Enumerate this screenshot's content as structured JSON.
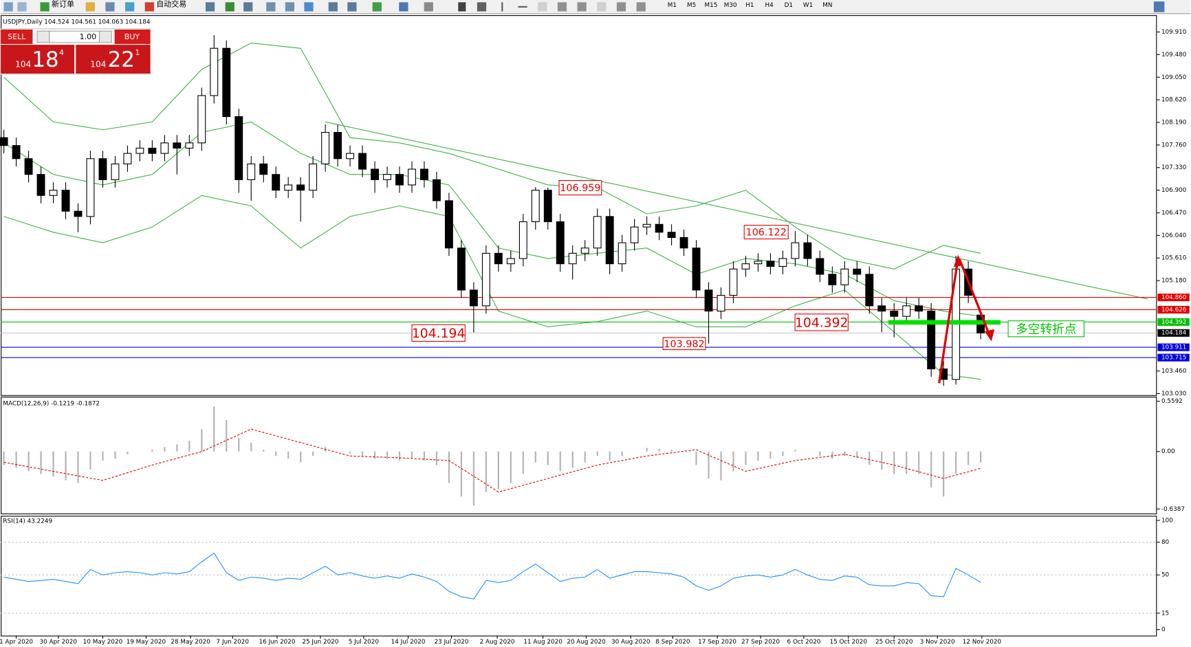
{
  "toolbar": {
    "new_order": "新订单",
    "auto_trade": "自动交易",
    "timeframes": [
      "M1",
      "M5",
      "M15",
      "M30",
      "H1",
      "H4",
      "D1",
      "W1",
      "MN"
    ]
  },
  "trade_panel": {
    "sell_label": "SELL",
    "buy_label": "BUY",
    "lot": "1.00",
    "sell": {
      "small": "104",
      "big": "18",
      "sup": "4"
    },
    "buy": {
      "small": "104",
      "big": "22",
      "sup": "1"
    }
  },
  "chart_data": [
    {
      "type": "candlestick",
      "title": "USDJPY,Daily 104.524 104.561 104.063 104.184",
      "open": [
        107.9,
        107.75,
        107.5,
        107.2,
        106.8,
        106.9,
        106.5,
        106.4,
        107.5,
        107.1,
        107.4,
        107.6,
        107.7,
        107.6,
        107.8,
        107.7,
        107.8,
        108.7,
        109.6,
        108.3,
        107.1,
        107.4,
        107.2,
        106.9,
        107.0,
        106.9,
        107.4,
        108.0,
        107.5,
        107.6,
        107.3,
        107.1,
        107.2,
        107.0,
        107.3,
        107.1,
        106.7,
        105.8,
        105.0,
        104.7,
        105.7,
        105.5,
        105.6,
        106.3,
        106.9,
        106.3,
        105.5,
        105.7,
        105.8,
        106.4,
        105.5,
        105.9,
        106.2,
        106.25,
        106.1,
        106.0,
        105.8,
        105.0,
        104.6,
        104.9,
        105.4,
        105.5,
        105.55,
        105.45,
        105.6,
        105.9,
        105.6,
        105.3,
        105.1,
        105.4,
        105.3,
        104.7,
        104.6,
        104.5,
        104.7,
        104.6,
        103.5,
        103.3,
        105.4,
        104.524
      ],
      "high": [
        108.05,
        107.9,
        107.65,
        107.35,
        107.05,
        107.05,
        106.65,
        107.65,
        107.65,
        107.55,
        107.75,
        107.85,
        107.85,
        107.95,
        107.95,
        107.95,
        108.85,
        109.85,
        109.75,
        108.45,
        107.55,
        107.55,
        107.35,
        107.15,
        107.15,
        107.55,
        108.15,
        108.15,
        107.75,
        107.75,
        107.45,
        107.35,
        107.35,
        107.45,
        107.45,
        107.25,
        106.85,
        105.95,
        105.15,
        105.85,
        105.85,
        105.75,
        106.45,
        106.959,
        106.95,
        106.45,
        105.85,
        105.95,
        106.55,
        106.55,
        106.05,
        106.35,
        106.4,
        106.4,
        106.25,
        106.15,
        105.95,
        105.15,
        105.05,
        105.55,
        105.65,
        105.7,
        105.7,
        105.75,
        106.122,
        106.05,
        105.75,
        105.45,
        105.55,
        105.55,
        105.45,
        104.85,
        104.75,
        104.85,
        104.85,
        104.75,
        103.65,
        105.65,
        105.55,
        104.561
      ],
      "low": [
        107.6,
        107.35,
        107.05,
        106.65,
        106.65,
        106.35,
        106.1,
        106.25,
        106.95,
        106.95,
        107.25,
        107.45,
        107.45,
        107.45,
        107.2,
        107.55,
        107.65,
        108.55,
        108.15,
        106.85,
        106.7,
        107.05,
        106.75,
        106.75,
        106.3,
        106.75,
        107.25,
        107.35,
        107.35,
        107.15,
        106.85,
        106.95,
        106.85,
        106.85,
        106.95,
        106.55,
        105.65,
        104.85,
        104.194,
        104.55,
        105.35,
        105.35,
        105.45,
        106.15,
        106.15,
        105.35,
        105.2,
        105.55,
        105.65,
        105.3,
        105.35,
        105.75,
        106.05,
        105.95,
        105.85,
        105.65,
        104.85,
        103.982,
        104.45,
        104.75,
        105.25,
        105.35,
        105.3,
        105.3,
        105.45,
        105.45,
        105.15,
        104.95,
        104.95,
        105.15,
        104.55,
        104.2,
        104.1,
        104.35,
        104.45,
        103.35,
        103.18,
        103.2,
        104.75,
        104.063
      ],
      "close": [
        107.75,
        107.5,
        107.2,
        106.8,
        106.9,
        106.5,
        106.4,
        107.5,
        107.1,
        107.4,
        107.6,
        107.7,
        107.6,
        107.8,
        107.7,
        107.8,
        108.7,
        109.6,
        108.3,
        107.1,
        107.4,
        107.2,
        106.9,
        107.0,
        106.9,
        107.4,
        108.0,
        107.5,
        107.6,
        107.3,
        107.1,
        107.2,
        107.0,
        107.3,
        107.1,
        106.7,
        105.8,
        105.0,
        104.7,
        105.7,
        105.5,
        105.6,
        106.3,
        106.9,
        106.3,
        105.5,
        105.7,
        105.8,
        106.4,
        105.5,
        105.9,
        106.2,
        106.25,
        106.1,
        106.0,
        105.8,
        105.0,
        104.6,
        104.9,
        105.4,
        105.5,
        105.55,
        105.45,
        105.6,
        105.9,
        105.6,
        105.3,
        105.1,
        105.4,
        105.3,
        104.7,
        104.6,
        104.5,
        104.7,
        104.6,
        103.5,
        103.3,
        105.4,
        104.9,
        104.184
      ],
      "xlim": [
        -0.25,
        93.25
      ],
      "ylim": [
        103.0,
        110.23
      ],
      "yticks": [
        {
          "value": 109.91,
          "label": "109.910"
        },
        {
          "value": 109.48,
          "label": "109.480"
        },
        {
          "value": 109.05,
          "label": "109.050"
        },
        {
          "value": 108.62,
          "label": "108.620"
        },
        {
          "value": 108.19,
          "label": "108.190"
        },
        {
          "value": 107.76,
          "label": "107.760"
        },
        {
          "value": 107.33,
          "label": "107.330"
        },
        {
          "value": 106.9,
          "label": "106.900"
        },
        {
          "value": 106.47,
          "label": "106.470"
        },
        {
          "value": 106.04,
          "label": "106.040"
        },
        {
          "value": 105.61,
          "label": "105.610"
        },
        {
          "value": 105.18,
          "label": "105.180"
        },
        {
          "value": 103.46,
          "label": "103.460"
        },
        {
          "value": 103.03,
          "label": "103.030"
        }
      ],
      "xticks": [
        {
          "value": 1.0,
          "label": "1 Apr 2020"
        },
        {
          "value": 4.4,
          "label": "30 Apr 2020"
        },
        {
          "value": 8.0,
          "label": "10 May 2020"
        },
        {
          "value": 11.5,
          "label": "19 May 2020"
        },
        {
          "value": 15.1,
          "label": "28 May 2020"
        },
        {
          "value": 18.5,
          "label": "7 Jun 2020"
        },
        {
          "value": 22.1,
          "label": "16 Jun 2020"
        },
        {
          "value": 25.6,
          "label": "25 Jun 2020"
        },
        {
          "value": 29.1,
          "label": "5 Jul 2020"
        },
        {
          "value": 32.7,
          "label": "14 Jul 2020"
        },
        {
          "value": 36.2,
          "label": "23 Jul 2020"
        },
        {
          "value": 39.9,
          "label": "2 Aug 2020"
        },
        {
          "value": 43.6,
          "label": "11 Aug 2020"
        },
        {
          "value": 47.1,
          "label": "20 Aug 2020"
        },
        {
          "value": 50.7,
          "label": "30 Aug 2020"
        },
        {
          "value": 54.1,
          "label": "8 Sep 2020"
        },
        {
          "value": 57.7,
          "label": "17 Sep 2020"
        },
        {
          "value": 61.2,
          "label": "27 Sep 2020"
        },
        {
          "value": 64.7,
          "label": "6 Oct 2020"
        },
        {
          "value": 68.3,
          "label": "15 Oct 2020"
        },
        {
          "value": 72.0,
          "label": "25 Oct 2020"
        },
        {
          "value": 75.5,
          "label": "3 Nov 2020"
        },
        {
          "value": 79.1,
          "label": "12 Nov 2020"
        }
      ],
      "bands": {
        "color": "#3cb043",
        "x": [
          0,
          4,
          8,
          12,
          16,
          20,
          24,
          28,
          32,
          36,
          40,
          44,
          48,
          52,
          56,
          60,
          64,
          68,
          72,
          76,
          79
        ],
        "upper": [
          109.05,
          108.2,
          108.05,
          108.2,
          109.2,
          109.7,
          109.6,
          107.9,
          107.8,
          107.6,
          107.3,
          107.0,
          106.95,
          106.45,
          106.6,
          106.9,
          106.2,
          105.6,
          105.4,
          105.85,
          105.7
        ],
        "middle": [
          107.8,
          107.2,
          107.0,
          107.2,
          108.0,
          108.2,
          107.6,
          107.2,
          107.2,
          107.0,
          105.8,
          105.6,
          105.7,
          105.8,
          105.3,
          105.6,
          105.5,
          105.3,
          104.8,
          104.6,
          104.5
        ],
        "lower": [
          106.4,
          106.1,
          105.9,
          106.2,
          106.8,
          106.6,
          105.8,
          106.4,
          106.6,
          106.4,
          104.6,
          104.3,
          104.4,
          104.6,
          104.3,
          104.3,
          104.7,
          105.0,
          104.2,
          103.4,
          103.3
        ]
      },
      "trendline": {
        "x": [
          26.0,
          92.5
        ],
        "values": [
          108.2,
          104.83
        ],
        "color": "#3cb043"
      },
      "levels": [
        {
          "value": 104.86,
          "label": "104.860",
          "color": "#e00000"
        },
        {
          "value": 104.626,
          "label": "104.626",
          "color": "#e00000"
        },
        {
          "value": 104.392,
          "label": "104.392",
          "color": "#00c000"
        },
        {
          "value": 104.184,
          "label": "104.184",
          "color": "#000000"
        },
        {
          "value": 103.911,
          "label": "103.911",
          "color": "#0000e0"
        },
        {
          "value": 103.715,
          "label": "103.715",
          "color": "#0000e0"
        }
      ],
      "annotations": [
        {
          "text": "106.959",
          "color": "#e00000"
        },
        {
          "text": "106.122",
          "color": "#e00000"
        },
        {
          "text": "104.194",
          "color": "#e00000"
        },
        {
          "text": "103.982",
          "color": "#e00000"
        },
        {
          "text": "104.392",
          "color": "#e00000"
        },
        {
          "text": "多空转折点",
          "color": "#00c000"
        }
      ]
    },
    {
      "type": "bar",
      "title": "MACD(12,26,9) -0.1219 -0.1872",
      "color": "#b4b4b4",
      "values": [
        -0.15,
        -0.18,
        -0.22,
        -0.25,
        -0.28,
        -0.32,
        -0.35,
        -0.2,
        -0.1,
        -0.08,
        -0.03,
        0.0,
        0.02,
        0.05,
        0.08,
        0.12,
        0.25,
        0.5,
        0.35,
        0.15,
        0.1,
        0.02,
        -0.05,
        -0.08,
        -0.12,
        -0.05,
        0.05,
        0.0,
        -0.02,
        -0.05,
        -0.08,
        -0.08,
        -0.1,
        -0.08,
        -0.1,
        -0.15,
        -0.35,
        -0.5,
        -0.6,
        -0.45,
        -0.42,
        -0.35,
        -0.25,
        -0.12,
        -0.15,
        -0.22,
        -0.18,
        -0.12,
        -0.05,
        -0.1,
        -0.05,
        0.0,
        0.04,
        0.03,
        0.02,
        0.0,
        -0.15,
        -0.3,
        -0.32,
        -0.22,
        -0.15,
        -0.1,
        -0.08,
        -0.05,
        0.02,
        0.0,
        -0.05,
        -0.08,
        -0.05,
        -0.07,
        -0.15,
        -0.2,
        -0.25,
        -0.25,
        -0.25,
        -0.4,
        -0.5,
        -0.25,
        -0.15,
        -0.1219
      ],
      "signal": {
        "color": "#e00000",
        "x": [
          0,
          4,
          8,
          12,
          16,
          20,
          24,
          28,
          32,
          36,
          40,
          44,
          48,
          52,
          56,
          60,
          64,
          68,
          72,
          76,
          79
        ],
        "values": [
          -0.12,
          -0.22,
          -0.32,
          -0.15,
          0.0,
          0.25,
          0.1,
          -0.05,
          -0.07,
          -0.1,
          -0.45,
          -0.3,
          -0.15,
          -0.05,
          0.02,
          -0.22,
          -0.1,
          -0.03,
          -0.15,
          -0.3,
          -0.1872
        ]
      },
      "ylim": [
        -0.689,
        0.61
      ],
      "yticks": [
        0.5592,
        {
          "value": 0,
          "label": "0.00"
        },
        -0.6387
      ]
    },
    {
      "type": "line",
      "title": "RSI(14) 43.2249",
      "color": "#1e90ff",
      "values": [
        48,
        46,
        44,
        45,
        46,
        44,
        42,
        55,
        50,
        52,
        53,
        52,
        50,
        52,
        51,
        53,
        62,
        70,
        52,
        45,
        48,
        47,
        45,
        47,
        46,
        52,
        58,
        50,
        52,
        49,
        47,
        49,
        47,
        51,
        48,
        44,
        35,
        30,
        28,
        45,
        43,
        45,
        53,
        60,
        52,
        44,
        47,
        48,
        55,
        47,
        50,
        53,
        53,
        52,
        51,
        48,
        40,
        36,
        40,
        47,
        49,
        50,
        48,
        50,
        55,
        50,
        46,
        45,
        49,
        48,
        41,
        40,
        40,
        43,
        42,
        31,
        30,
        56,
        50,
        43.2249
      ],
      "ylim": [
        0,
        100
      ],
      "yticks": [
        100,
        80,
        50,
        15,
        0
      ]
    }
  ]
}
